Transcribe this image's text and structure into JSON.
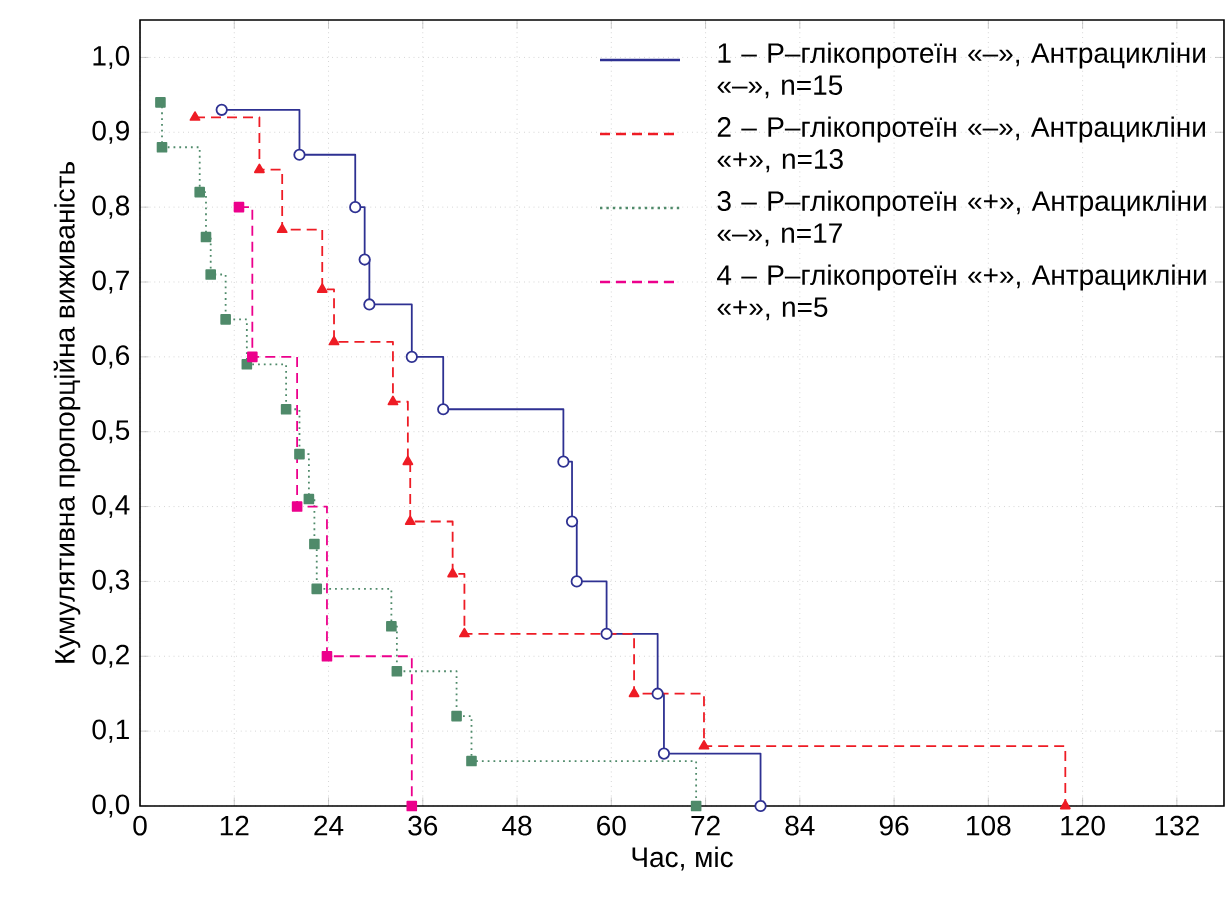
{
  "chart_data": {
    "type": "step",
    "xlabel": "Час, міс",
    "ylabel": "Кумулятивна пропорційна виживаність",
    "xlim": [
      0,
      138
    ],
    "ylim": [
      0,
      1.05
    ],
    "xticks": [
      0,
      12,
      24,
      36,
      48,
      60,
      72,
      84,
      96,
      108,
      120,
      132
    ],
    "yticks": [
      {
        "value": 0,
        "label": "0,0"
      },
      {
        "value": 0.1,
        "label": "0,1"
      },
      {
        "value": 0.2,
        "label": "0,2"
      },
      {
        "value": 0.3,
        "label": "0,3"
      },
      {
        "value": 0.4,
        "label": "0,4"
      },
      {
        "value": 0.5,
        "label": "0,5"
      },
      {
        "value": 0.6,
        "label": "0,6"
      },
      {
        "value": 0.7,
        "label": "0,7"
      },
      {
        "value": 0.8,
        "label": "0,8"
      },
      {
        "value": 0.9,
        "label": "0,9"
      },
      {
        "value": 1.0,
        "label": "1,0"
      }
    ],
    "grid": true,
    "legend": "top right",
    "series": [
      {
        "name": "1 – Р–глікопротеїн «–», Антрацикліни «–», n=15",
        "color": "#2e3192",
        "marker": "circle",
        "line_style": "solid",
        "x": [
          10.4,
          20.3,
          27.4,
          28.6,
          29.2,
          34.6,
          38.6,
          53.9,
          55,
          55.6,
          59.4,
          65.9,
          66.7,
          79
        ],
        "values": [
          0.93,
          0.87,
          0.8,
          0.73,
          0.67,
          0.6,
          0.53,
          0.46,
          0.38,
          0.3,
          0.23,
          0.15,
          0.07,
          0.0
        ]
      },
      {
        "name": "2 – Р–глікопротеїн «–», Антрацикліни «+», n=13",
        "color": "#ee1c25",
        "marker": "triangle",
        "line_style": "dashed",
        "x": [
          7,
          15.2,
          18.1,
          23.2,
          24.7,
          32.2,
          34.1,
          34.4,
          39.8,
          41.3,
          62.9,
          71.8,
          117.8
        ],
        "values": [
          0.92,
          0.85,
          0.77,
          0.69,
          0.62,
          0.54,
          0.46,
          0.38,
          0.31,
          0.23,
          0.15,
          0.08,
          0.0
        ]
      },
      {
        "name": "3 – Р–глікопротеїн «+», Антрацикліни «–», n=17",
        "color": "#4f8a6a",
        "marker": "square",
        "line_style": "dotted",
        "x": [
          2.6,
          2.8,
          7.6,
          8.4,
          9.0,
          10.9,
          13.6,
          18.6,
          20.3,
          21.5,
          22.2,
          22.5,
          32.0,
          32.7,
          40.3,
          42.2,
          70.8
        ],
        "values": [
          0.94,
          0.88,
          0.82,
          0.76,
          0.71,
          0.65,
          0.59,
          0.53,
          0.47,
          0.41,
          0.35,
          0.29,
          0.24,
          0.18,
          0.12,
          0.06,
          0.0
        ]
      },
      {
        "name": "4 – Р–глікопротеїн «+», Антрацикліни «+», n=5",
        "color": "#ec008c",
        "marker": "square",
        "line_style": "dashed",
        "x": [
          12.6,
          14.3,
          20.0,
          23.8,
          34.6
        ],
        "values": [
          0.8,
          0.6,
          0.4,
          0.2,
          0.0
        ]
      }
    ]
  }
}
